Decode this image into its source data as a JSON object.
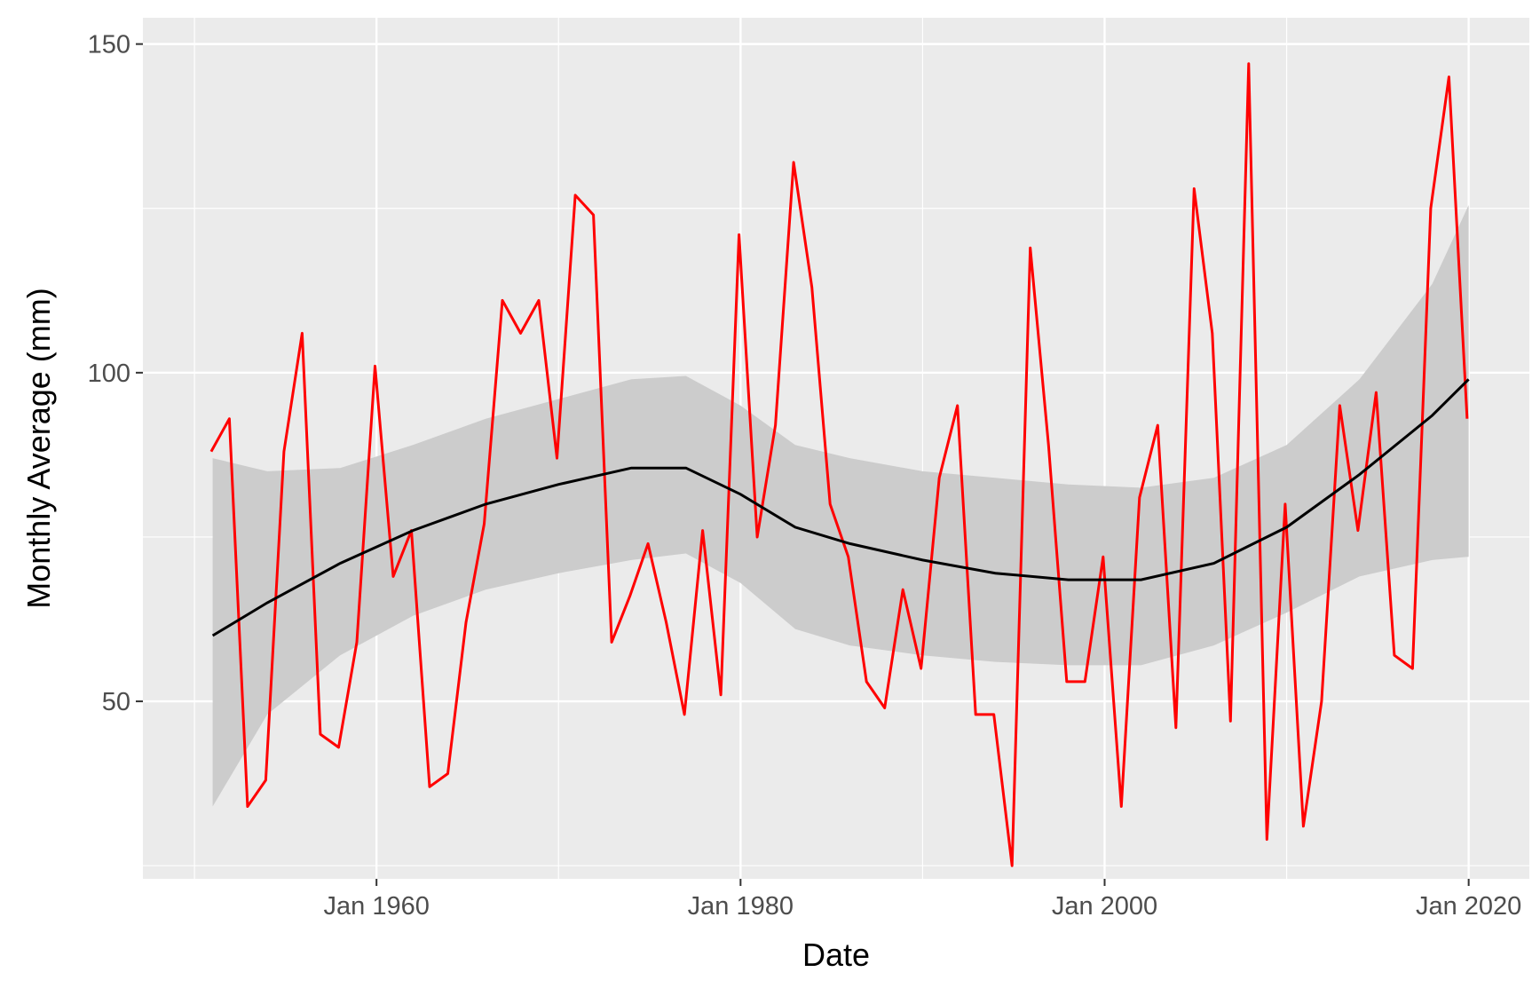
{
  "chart_data": {
    "type": "line",
    "title": "",
    "xlabel": "Date",
    "ylabel": "Monthly Average (mm)",
    "x_tick_labels": [
      "Jan 1960",
      "Jan 1980",
      "Jan 2000",
      "Jan 2020"
    ],
    "y_tick_labels": [
      "50",
      "100",
      "150"
    ],
    "xlim": [
      "1947-03",
      "2023-05"
    ],
    "ylim": [
      23,
      154
    ],
    "grid": true,
    "legend": "none",
    "colors": {
      "panel": "#EBEBEB",
      "grid": "#FFFFFF",
      "series": "#FF0000",
      "smooth": "#000000",
      "ribbon": "#CCCCCC"
    },
    "series": [
      {
        "x": [
          "1950-12",
          "1951-12",
          "1952-12",
          "1953-12",
          "1954-12",
          "1955-12",
          "1956-12",
          "1957-12",
          "1958-12",
          "1959-12",
          "1960-12",
          "1961-12",
          "1962-12",
          "1963-12",
          "1964-12",
          "1965-12",
          "1966-12",
          "1967-12",
          "1968-12",
          "1969-12",
          "1970-12",
          "1971-12",
          "1972-12",
          "1973-12",
          "1974-12",
          "1975-12",
          "1976-12",
          "1977-12",
          "1978-12",
          "1979-12",
          "1980-12",
          "1981-12",
          "1982-12",
          "1983-12",
          "1984-12",
          "1985-12",
          "1986-12",
          "1987-12",
          "1988-12",
          "1989-12",
          "1990-12",
          "1991-12",
          "1992-12",
          "1993-12",
          "1994-12",
          "1995-12",
          "1996-12",
          "1997-12",
          "1998-12",
          "1999-12",
          "2000-12",
          "2001-12",
          "2002-12",
          "2003-12",
          "2004-12",
          "2005-12",
          "2006-12",
          "2007-12",
          "2008-12",
          "2009-12",
          "2010-12",
          "2011-12",
          "2012-12",
          "2013-12",
          "2014-12",
          "2015-12",
          "2016-12",
          "2017-12",
          "2018-12",
          "2019-12"
        ],
        "values": [
          88,
          93,
          34,
          38,
          88,
          106,
          45,
          43,
          59,
          101,
          69,
          76,
          37,
          39,
          62,
          77,
          111,
          106,
          111,
          87,
          127,
          124,
          59,
          66,
          74,
          62,
          48,
          76,
          51,
          121,
          75,
          92,
          132,
          113,
          80,
          72,
          53,
          49,
          67,
          55,
          84,
          95,
          48,
          48,
          25,
          119,
          89,
          53,
          53,
          72,
          34,
          81,
          92,
          46,
          128,
          106,
          47,
          147,
          29,
          80,
          31,
          50,
          95,
          76,
          97,
          57,
          55,
          125,
          145,
          93
        ]
      }
    ],
    "smooth": {
      "x": [
        "1951-01",
        "1954-01",
        "1958-01",
        "1962-01",
        "1966-01",
        "1970-01",
        "1974-01",
        "1977-01",
        "1980-01",
        "1983-01",
        "1986-01",
        "1990-01",
        "1994-01",
        "1998-01",
        "2002-01",
        "2006-01",
        "2010-01",
        "2014-01",
        "2018-01",
        "2020-01"
      ],
      "mean": [
        60,
        65,
        71,
        76,
        80,
        83,
        85.5,
        85.5,
        81.5,
        76.5,
        74,
        71.5,
        69.5,
        68.5,
        68.5,
        71,
        76.5,
        84.5,
        93.5,
        99
      ],
      "lower": [
        34,
        48,
        57,
        63,
        67,
        69.5,
        71.5,
        72.5,
        68,
        61,
        58.5,
        57,
        56,
        55.5,
        55.5,
        58.5,
        63.5,
        69,
        71.5,
        72
      ],
      "upper": [
        87,
        85,
        85.5,
        89,
        93,
        96,
        99,
        99.5,
        95,
        89,
        87,
        85,
        84,
        83,
        82.5,
        84,
        89,
        99,
        113.5,
        125.5
      ]
    }
  }
}
